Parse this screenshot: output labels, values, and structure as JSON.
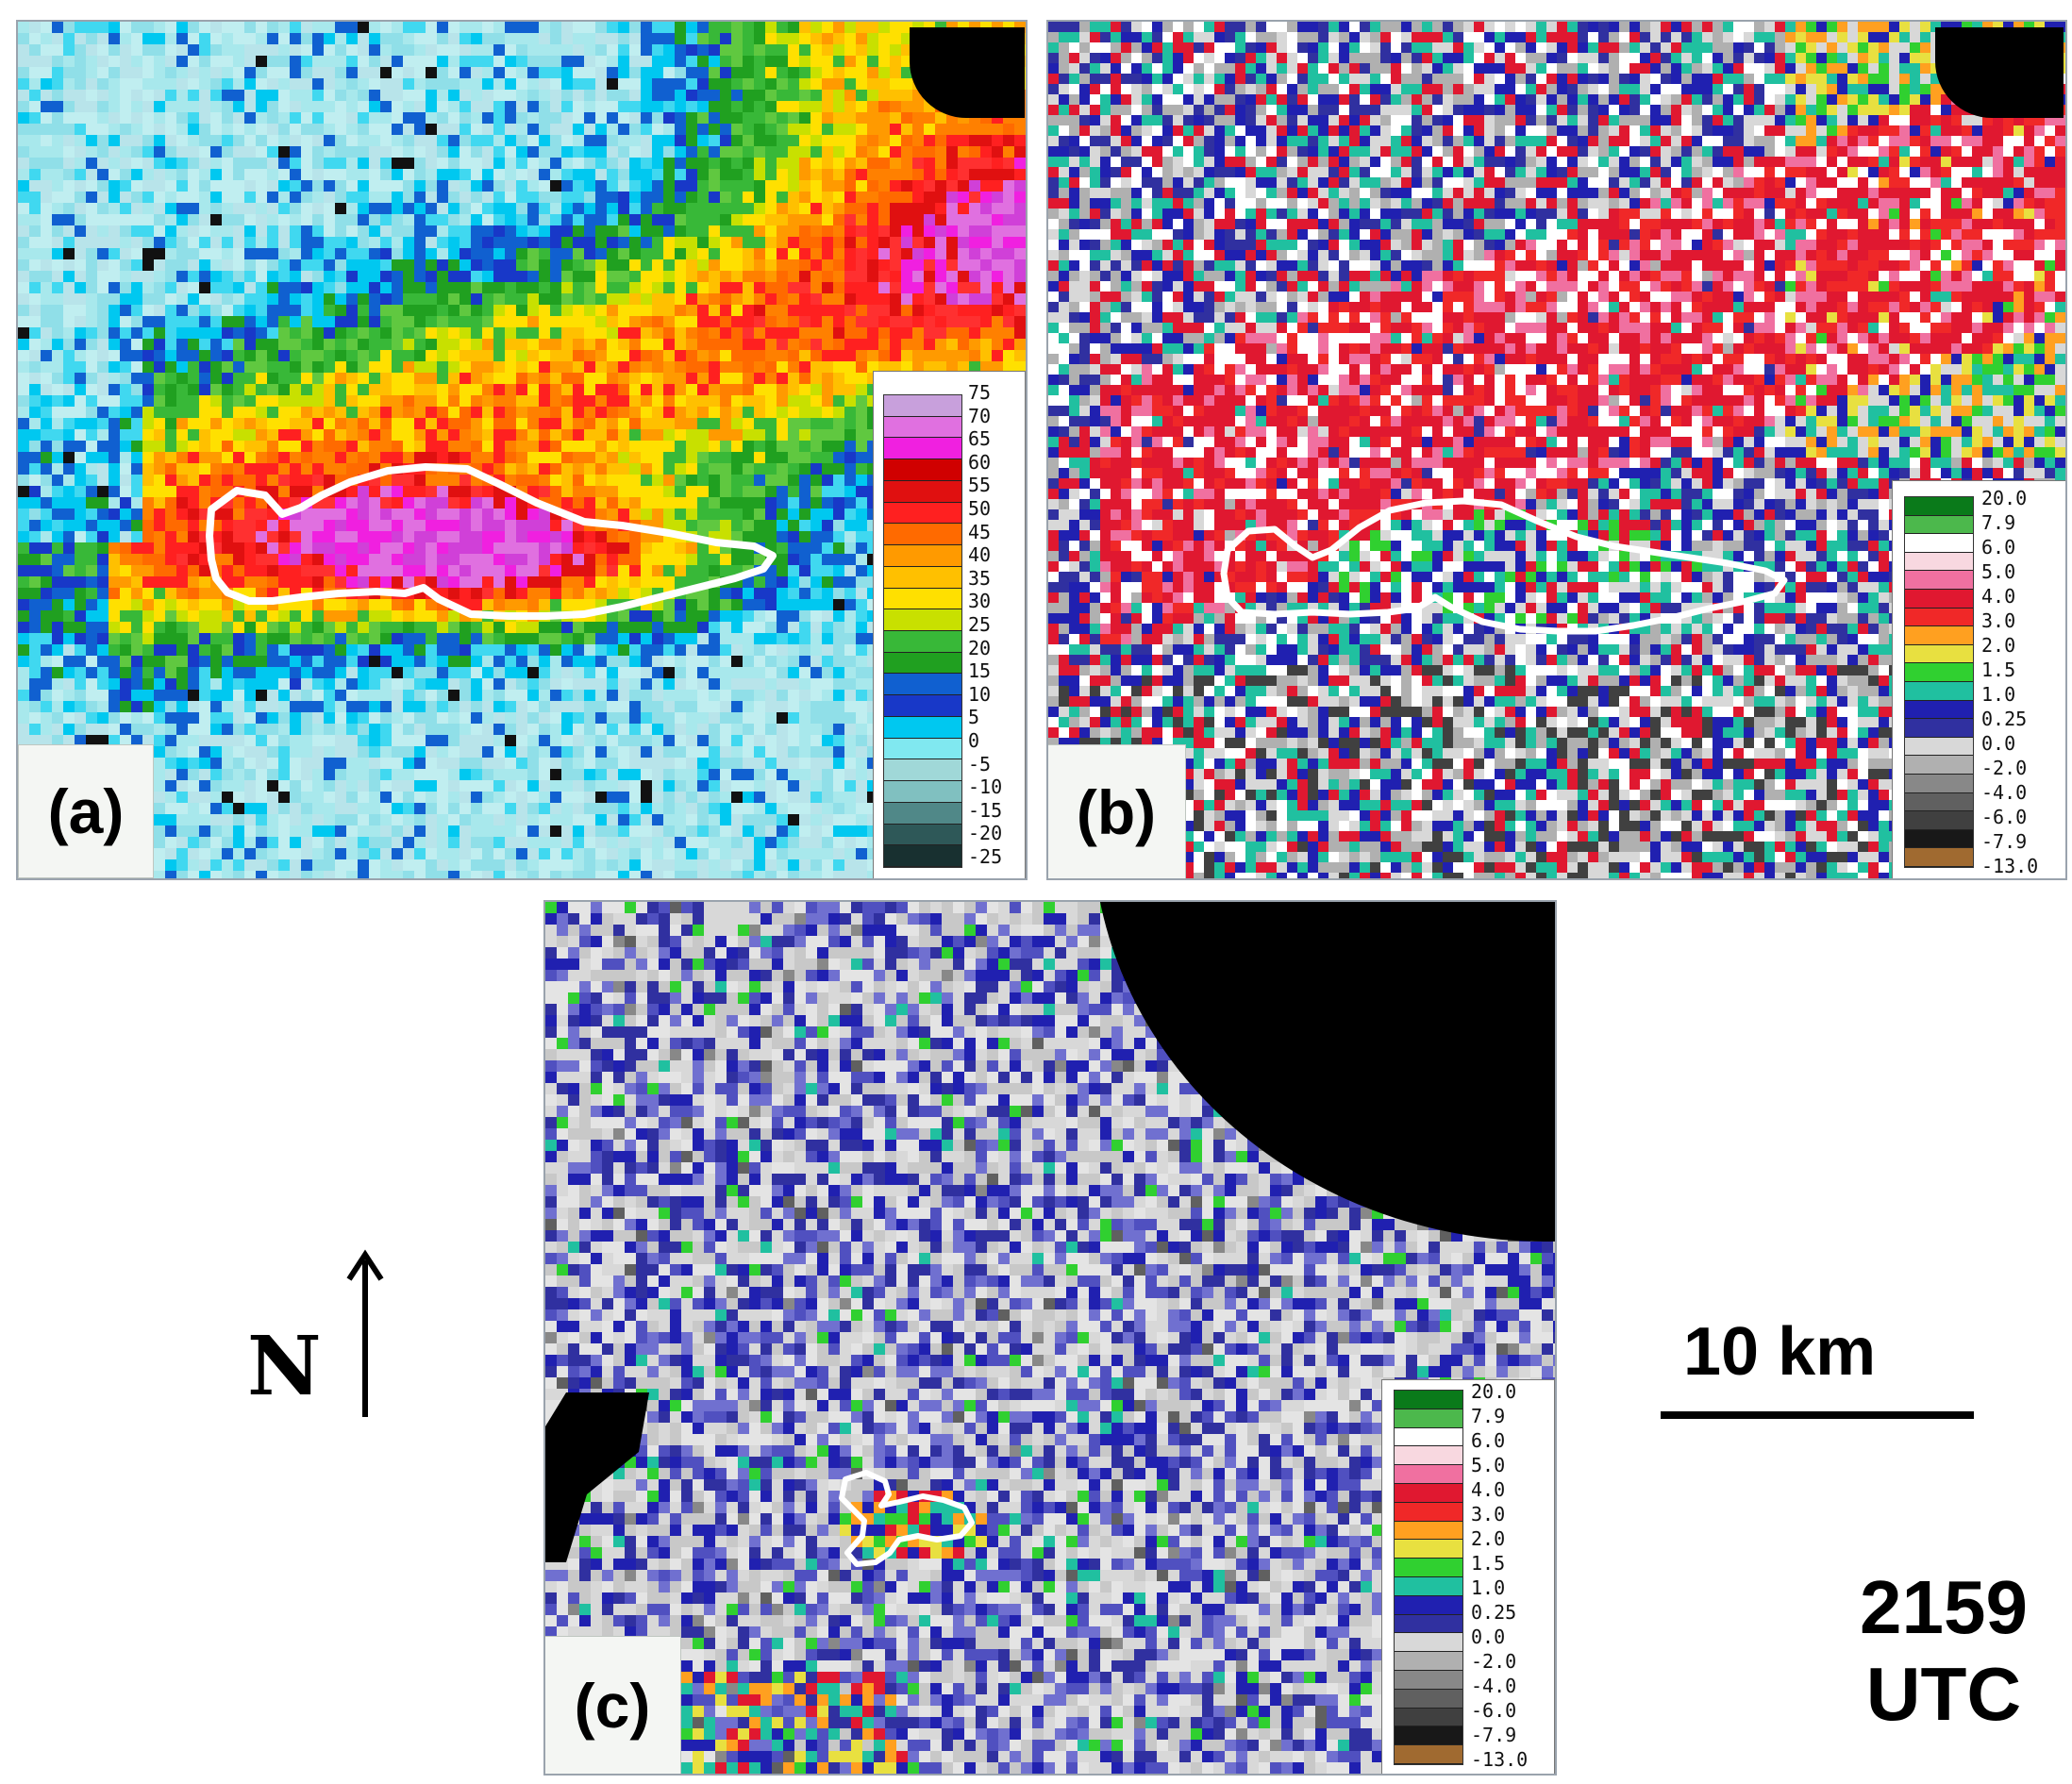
{
  "panels": {
    "a": {
      "label": "(a)"
    },
    "b": {
      "label": "(b)"
    },
    "c": {
      "label": "(c)"
    }
  },
  "colorbars": {
    "reflectivity": {
      "ticks": [
        "75",
        "70",
        "65",
        "60",
        "55",
        "50",
        "45",
        "40",
        "35",
        "30",
        "25",
        "20",
        "15",
        "10",
        "5",
        "0",
        "-5",
        "-10",
        "-15",
        "-20",
        "-25"
      ],
      "colors": [
        "#c8a0dc",
        "#e070e0",
        "#f020e0",
        "#d00000",
        "#e01010",
        "#ff2020",
        "#ff6a00",
        "#ff9a00",
        "#ffc000",
        "#ffe000",
        "#c8e000",
        "#38b838",
        "#20a020",
        "#1060d0",
        "#1838c8",
        "#00c8f0",
        "#80e8f0",
        "#a0d8d8",
        "#80c0c0",
        "#508888",
        "#2e5858",
        "#183030"
      ]
    },
    "zdr": {
      "ticks": [
        "20.0",
        "7.9",
        "6.0",
        "5.0",
        "4.0",
        "3.0",
        "2.0",
        "1.5",
        "1.0",
        "0.25",
        "0.0",
        "-2.0",
        "-4.0",
        "-6.0",
        "-7.9",
        "-13.0"
      ],
      "colors": [
        "#0a7a1a",
        "#4cb84c",
        "#ffffff",
        "#f8d8e0",
        "#f070a0",
        "#e01830",
        "#f02828",
        "#ffa020",
        "#e8e040",
        "#30d030",
        "#20c0a0",
        "#2020b0",
        "#3030a0",
        "#d8d8d8",
        "#b0b0b0",
        "#888888",
        "#606060",
        "#404040",
        "#181818",
        "#a06a30"
      ]
    }
  },
  "annotations": {
    "north": "N",
    "scale_label": "10 km",
    "time_value": "2159",
    "time_unit": "UTC"
  },
  "colors": {
    "outline": "#ffffff",
    "blanked": "#000000",
    "frame": "#9aa3ad"
  }
}
